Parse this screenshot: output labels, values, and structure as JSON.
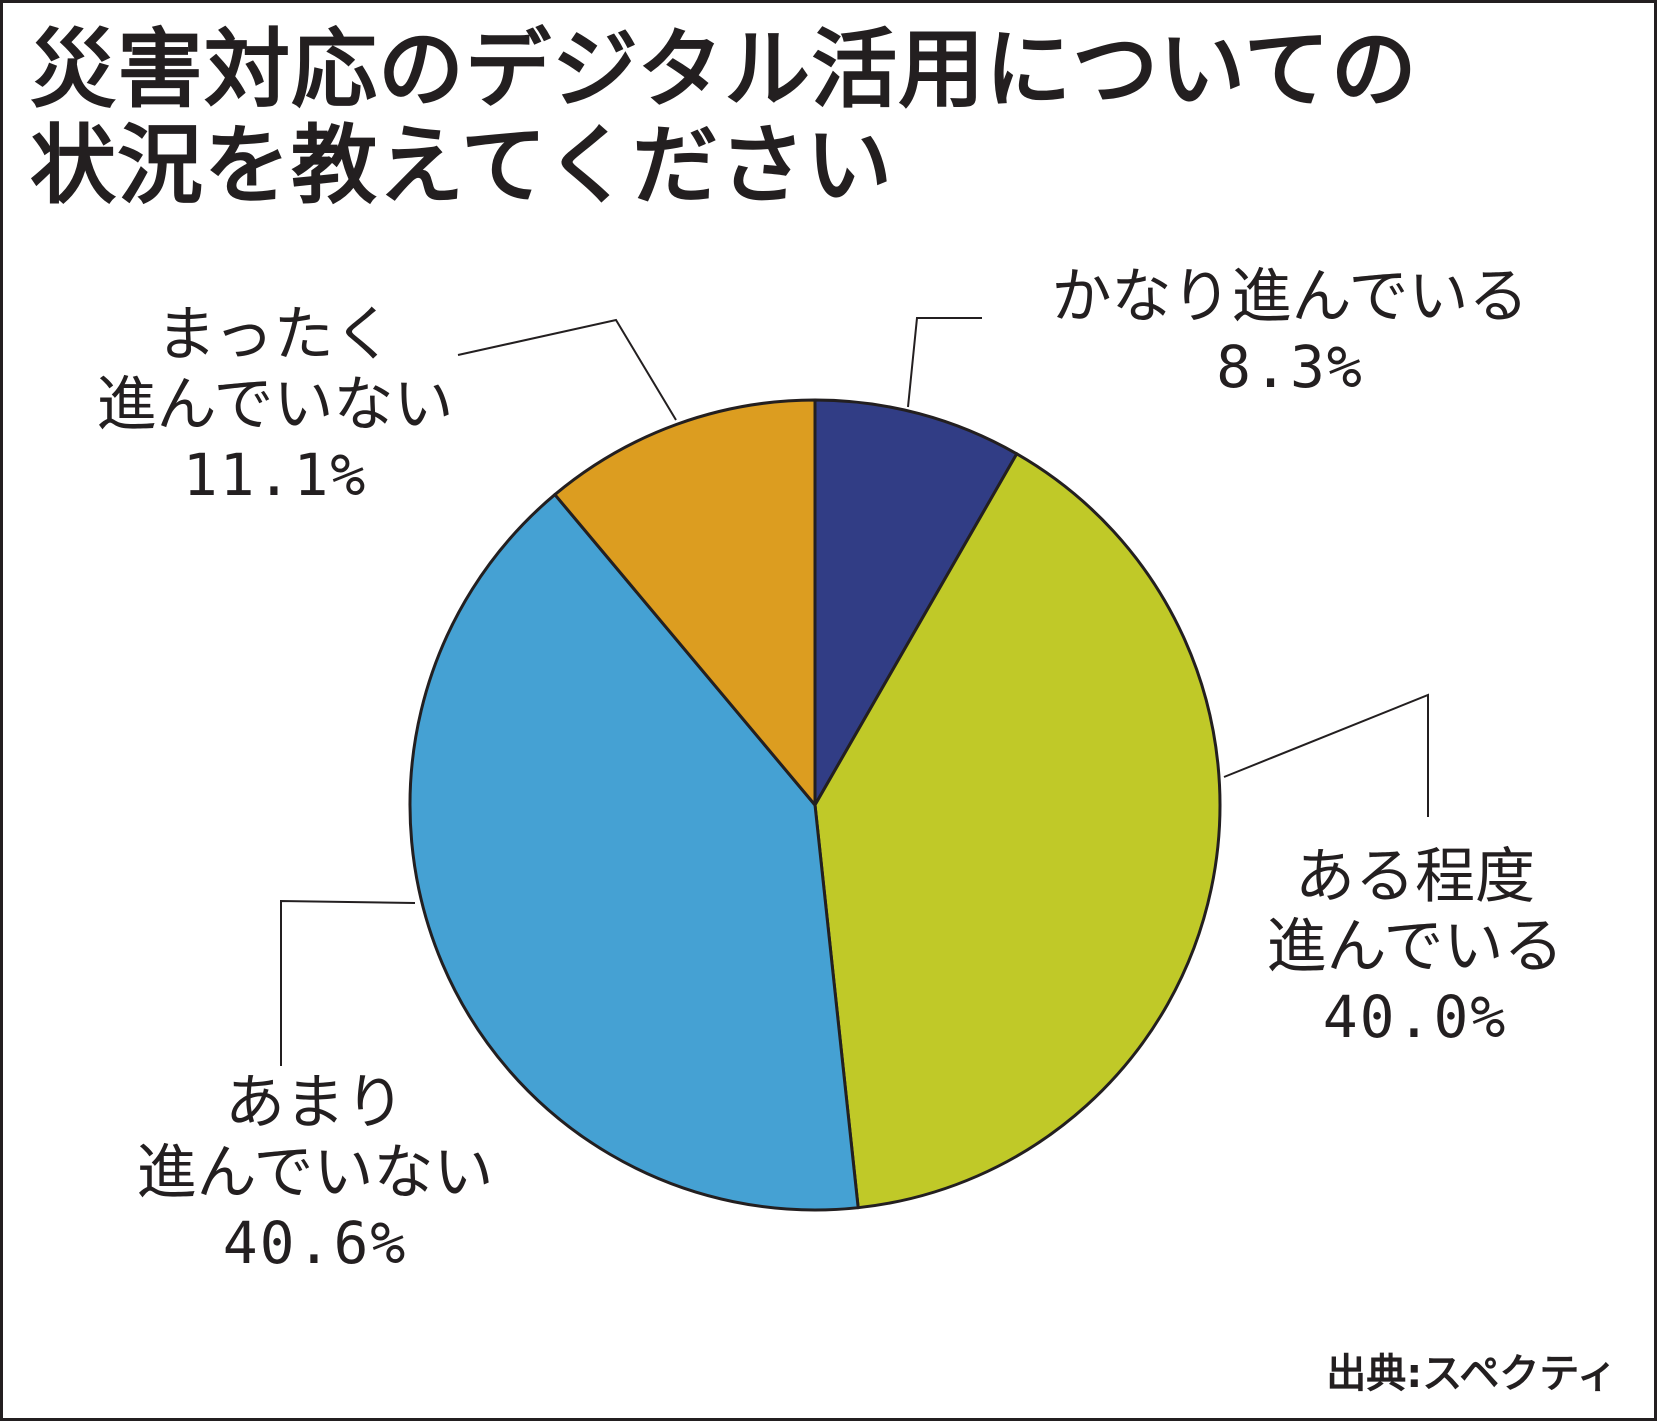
{
  "title": {
    "line1": "災害対応のデジタル活用についての",
    "line2": "状況を教えてください"
  },
  "chart_data": {
    "type": "pie",
    "start_angle_deg": 0,
    "direction": "clockwise",
    "slices": [
      {
        "label_line1": "かなり進んでいる",
        "label_line2": "",
        "value": 8.3,
        "value_label": "8.3%",
        "color": "#313d85"
      },
      {
        "label_line1": "ある程度",
        "label_line2": "進んでいる",
        "value": 40.0,
        "value_label": "40.0%",
        "color": "#c0c928"
      },
      {
        "label_line1": "あまり",
        "label_line2": "進んでいない",
        "value": 40.6,
        "value_label": "40.6%",
        "color": "#45a1d3"
      },
      {
        "label_line1": "まったく",
        "label_line2": "進んでいない",
        "value": 11.1,
        "value_label": "11.1%",
        "color": "#dc9d20"
      }
    ]
  },
  "source": "出典:スペクティ"
}
